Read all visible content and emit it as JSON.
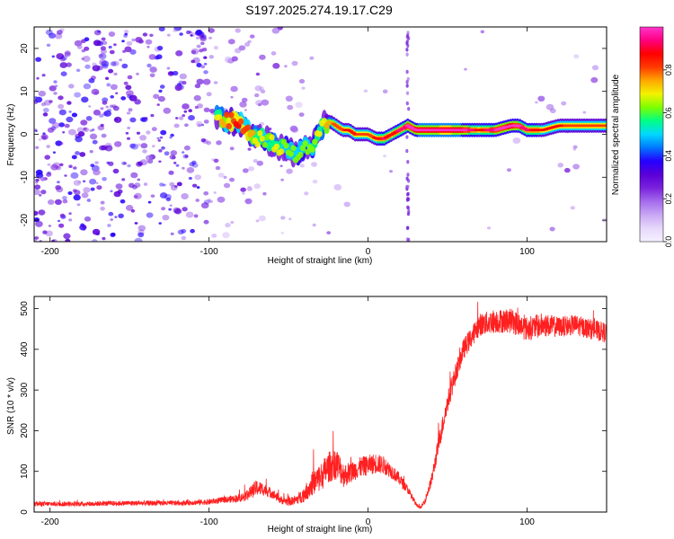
{
  "title": "S197.2025.274.19.17.C29",
  "chart_data": [
    {
      "type": "heatmap",
      "xlabel": "Height of straight line (km)",
      "ylabel": "Frequency (Hz)",
      "xlim": [
        -210,
        150
      ],
      "ylim": [
        -25,
        25
      ],
      "xticks": [
        -200,
        -100,
        0,
        100
      ],
      "yticks": [
        -20,
        -10,
        0,
        10,
        20
      ],
      "colorbar": {
        "label": "Normalized spectral amplitude",
        "range": [
          0,
          1
        ],
        "ticks": [
          0.0,
          0.2,
          0.4,
          0.6,
          0.8
        ],
        "colors": [
          "#f5f0ff",
          "#e6d8fb",
          "#c9a7f4",
          "#a46bec",
          "#7a22dd",
          "#5a00d8",
          "#2500ff",
          "#0078ff",
          "#00d8ff",
          "#00ff84",
          "#7cff00",
          "#f2f200",
          "#ffa800",
          "#ff3a00",
          "#ff0000",
          "#ff0080",
          "#ff33cc"
        ]
      },
      "ridge": {
        "x": [
          -95,
          -88,
          -82,
          -76,
          -70,
          -64,
          -58,
          -52,
          -46,
          -40,
          -35,
          -30,
          -28,
          -24,
          -20,
          -16,
          -12,
          -8,
          -4,
          0,
          5,
          10,
          15,
          20,
          25,
          30,
          40,
          50,
          60,
          70,
          80,
          90,
          95,
          100,
          110,
          120,
          130,
          140,
          150
        ],
        "y": [
          4,
          3,
          3,
          1,
          -1,
          -1,
          -3,
          -3,
          -5,
          -3,
          -3,
          1,
          2,
          3,
          2,
          1,
          1,
          0,
          0,
          0,
          -1,
          -1,
          0,
          1,
          2,
          1,
          1,
          1,
          1,
          1,
          1,
          2,
          2,
          1,
          1,
          2,
          2,
          2,
          2
        ],
        "amp": [
          0.6,
          0.7,
          0.75,
          0.7,
          0.6,
          0.55,
          0.6,
          0.55,
          0.55,
          0.55,
          0.55,
          0.6,
          0.6,
          0.65,
          0.7,
          0.72,
          0.75,
          0.75,
          0.7,
          0.7,
          0.75,
          0.8,
          0.75,
          0.8,
          0.85,
          0.9,
          0.92,
          0.95,
          0.9,
          0.75,
          0.85,
          0.9,
          0.85,
          0.8,
          0.75,
          0.75,
          0.7,
          0.7,
          0.7
        ]
      },
      "vertical_lines_x": [
        25
      ]
    },
    {
      "type": "line",
      "xlabel": "Height of straight line (km)",
      "ylabel": "SNR (10 * v/v)",
      "xlim": [
        -210,
        150
      ],
      "ylim": [
        0,
        530
      ],
      "xticks": [
        -200,
        -100,
        0,
        100
      ],
      "yticks": [
        0,
        100,
        200,
        300,
        400,
        500
      ],
      "color": "#ff2020",
      "series": [
        {
          "name": "SNR",
          "x": [
            -210,
            -180,
            -150,
            -120,
            -100,
            -90,
            -80,
            -75,
            -70,
            -65,
            -60,
            -55,
            -50,
            -45,
            -40,
            -35,
            -30,
            -25,
            -20,
            -15,
            -10,
            -5,
            0,
            5,
            10,
            15,
            20,
            25,
            30,
            33,
            36,
            40,
            45,
            50,
            55,
            60,
            65,
            70,
            80,
            90,
            100,
            110,
            120,
            130,
            140,
            150
          ],
          "y": [
            20,
            20,
            22,
            22,
            25,
            30,
            35,
            45,
            60,
            55,
            45,
            30,
            25,
            30,
            45,
            70,
            85,
            110,
            120,
            90,
            100,
            110,
            115,
            120,
            115,
            100,
            80,
            55,
            20,
            10,
            30,
            80,
            180,
            270,
            340,
            400,
            430,
            460,
            470,
            470,
            450,
            460,
            455,
            460,
            450,
            440
          ],
          "noise": [
            6,
            6,
            6,
            6,
            7,
            8,
            10,
            15,
            20,
            15,
            12,
            10,
            10,
            12,
            20,
            30,
            35,
            38,
            40,
            30,
            25,
            25,
            25,
            25,
            22,
            18,
            15,
            10,
            5,
            3,
            8,
            15,
            25,
            25,
            25,
            25,
            25,
            28,
            30,
            30,
            30,
            30,
            25,
            25,
            25,
            25
          ]
        }
      ]
    }
  ]
}
